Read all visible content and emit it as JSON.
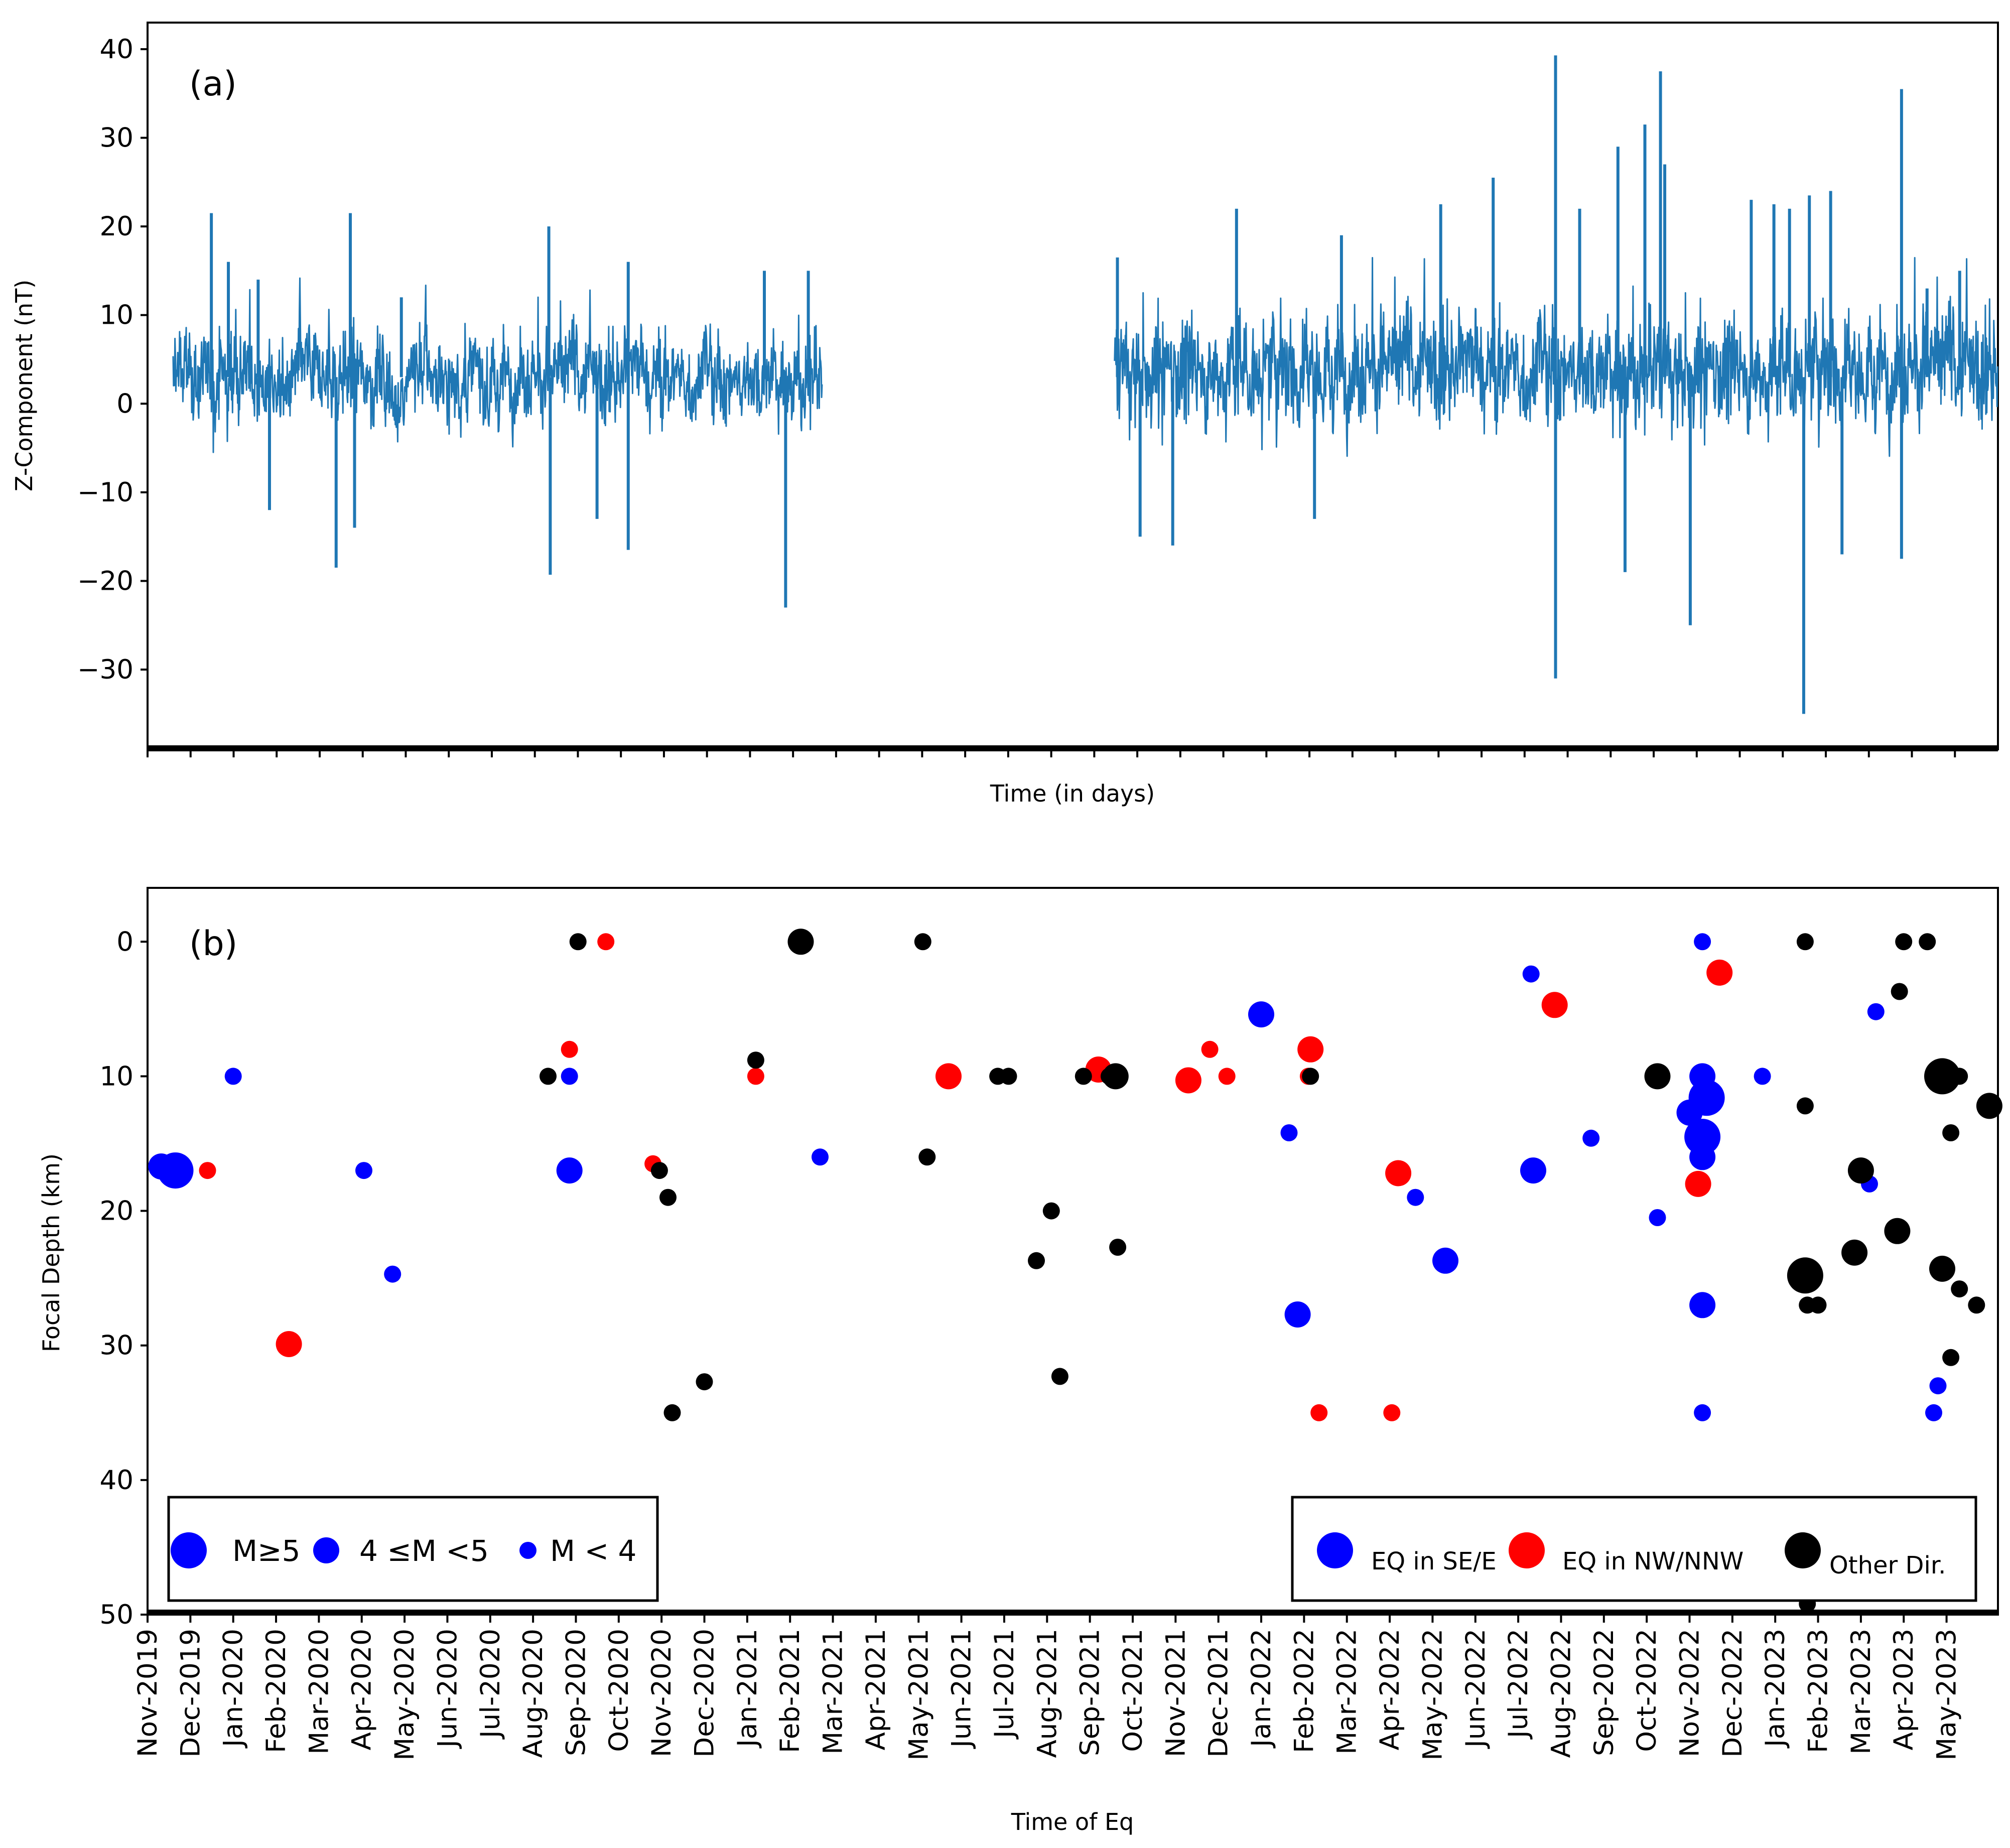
{
  "chart_data": [
    {
      "panel": "(a)",
      "type": "line",
      "title": "",
      "xlabel": "Time (in days)",
      "ylabel": "Z-Component (nT)",
      "ylim": [
        -39,
        43
      ],
      "yticks": [
        -30,
        -20,
        -10,
        0,
        10,
        20,
        30,
        40
      ],
      "ytick_labels": [
        "−30",
        "−20",
        "−10",
        "0",
        "10",
        "20",
        "30",
        "40"
      ],
      "xlim": [
        0,
        1305
      ],
      "color": "#1f77b4",
      "series": [
        {
          "name": "Z-Component",
          "segments": [
            {
              "start_day": 18,
              "end_day": 476,
              "baseline": 3,
              "amplitude": 6
            },
            {
              "start_day": 682,
              "end_day": 1305,
              "baseline": 4,
              "amplitude": 8
            }
          ],
          "spikes": [
            {
              "day": 45,
              "value": 21.5
            },
            {
              "day": 57,
              "value": 16
            },
            {
              "day": 78,
              "value": 14
            },
            {
              "day": 86,
              "value": -12
            },
            {
              "day": 133,
              "value": -18.5
            },
            {
              "day": 143,
              "value": 21.5
            },
            {
              "day": 146,
              "value": -14
            },
            {
              "day": 179,
              "value": 12
            },
            {
              "day": 283,
              "value": 20
            },
            {
              "day": 284,
              "value": -19.3
            },
            {
              "day": 317,
              "value": -13
            },
            {
              "day": 339,
              "value": 16
            },
            {
              "day": 339,
              "value": -16.5
            },
            {
              "day": 435,
              "value": 15
            },
            {
              "day": 450,
              "value": -23
            },
            {
              "day": 466,
              "value": 15
            },
            {
              "day": 684,
              "value": 16.5
            },
            {
              "day": 700,
              "value": -15
            },
            {
              "day": 723,
              "value": -16
            },
            {
              "day": 768,
              "value": 22
            },
            {
              "day": 823,
              "value": -13
            },
            {
              "day": 842,
              "value": 19
            },
            {
              "day": 912,
              "value": 22.5
            },
            {
              "day": 949,
              "value": 25.5
            },
            {
              "day": 993,
              "value": 39.3
            },
            {
              "day": 993,
              "value": -31
            },
            {
              "day": 1010,
              "value": 22
            },
            {
              "day": 1037,
              "value": 29
            },
            {
              "day": 1042,
              "value": -19
            },
            {
              "day": 1056,
              "value": 31.5
            },
            {
              "day": 1067,
              "value": 37.5
            },
            {
              "day": 1070,
              "value": 27
            },
            {
              "day": 1088,
              "value": -25
            },
            {
              "day": 1131,
              "value": 23
            },
            {
              "day": 1147,
              "value": 22.5
            },
            {
              "day": 1158,
              "value": 22
            },
            {
              "day": 1168,
              "value": -35
            },
            {
              "day": 1172,
              "value": 23.5
            },
            {
              "day": 1187,
              "value": 24
            },
            {
              "day": 1195,
              "value": -17
            },
            {
              "day": 1237,
              "value": 35.5
            },
            {
              "day": 1237,
              "value": -17.5
            },
            {
              "day": 1255,
              "value": 13
            },
            {
              "day": 1278,
              "value": 15
            }
          ]
        }
      ]
    },
    {
      "panel": "(b)",
      "type": "scatter",
      "title": "",
      "xlabel": "Time of Eq",
      "ylabel": "Focal Depth (km)",
      "ylim": [
        50,
        -4
      ],
      "yticks": [
        0,
        10,
        20,
        30,
        40,
        50
      ],
      "ytick_labels": [
        "0",
        "10",
        "20",
        "30",
        "40",
        "50"
      ],
      "x_units": "months since Nov-2019",
      "xlim": [
        0,
        43.2
      ],
      "categories": [
        "Nov-2019",
        "Dec-2019",
        "Jan-2020",
        "Feb-2020",
        "Mar-2020",
        "Apr-2020",
        "May-2020",
        "Jun-2020",
        "Jul-2020",
        "Aug-2020",
        "Sep-2020",
        "Oct-2020",
        "Nov-2020",
        "Dec-2020",
        "Jan-2021",
        "Feb-2021",
        "Mar-2021",
        "Apr-2021",
        "May-2021",
        "Jun-2021",
        "Jul-2021",
        "Aug-2021",
        "Sep-2021",
        "Oct-2021",
        "Nov-2021",
        "Dec-2021",
        "Jan-2022",
        "Feb-2022",
        "Mar-2022",
        "Apr-2022",
        "May-2022",
        "Jun-2022",
        "Jul-2022",
        "Aug-2022",
        "Sep-2022",
        "Oct-2022",
        "Nov-2022",
        "Dec-2022",
        "Jan-2023",
        "Feb-2023",
        "Mar-2023",
        "Apr-2023",
        "May-2023"
      ],
      "direction_colors": {
        "se": "#0000ff",
        "nw": "#ff0000",
        "other": "#000000"
      },
      "magnitude_classes": {
        "large": "M≥5",
        "medium": "4 ≤M <5",
        "small": "M < 4"
      },
      "series": [
        {
          "name": "EQ in SE/E",
          "dir": "se",
          "points": [
            {
              "x": 0.32,
              "y": 16.7,
              "m": "medium"
            },
            {
              "x": 0.65,
              "y": 17.0,
              "m": "large"
            },
            {
              "x": 2.0,
              "y": 10.0,
              "m": "small"
            },
            {
              "x": 5.05,
              "y": 17.0,
              "m": "small"
            },
            {
              "x": 5.72,
              "y": 24.7,
              "m": "small"
            },
            {
              "x": 9.85,
              "y": 10.0,
              "m": "small"
            },
            {
              "x": 9.85,
              "y": 17.0,
              "m": "medium"
            },
            {
              "x": 15.7,
              "y": 16.0,
              "m": "small"
            },
            {
              "x": 26.0,
              "y": 5.4,
              "m": "medium"
            },
            {
              "x": 26.65,
              "y": 14.2,
              "m": "small"
            },
            {
              "x": 26.85,
              "y": 27.7,
              "m": "medium"
            },
            {
              "x": 29.6,
              "y": 19.0,
              "m": "small"
            },
            {
              "x": 30.3,
              "y": 23.7,
              "m": "medium"
            },
            {
              "x": 32.3,
              "y": 2.4,
              "m": "small"
            },
            {
              "x": 32.35,
              "y": 17.0,
              "m": "medium"
            },
            {
              "x": 33.7,
              "y": 14.6,
              "m": "small"
            },
            {
              "x": 35.25,
              "y": 20.5,
              "m": "small"
            },
            {
              "x": 36.0,
              "y": 12.7,
              "m": "medium"
            },
            {
              "x": 36.3,
              "y": 0.0,
              "m": "small"
            },
            {
              "x": 36.3,
              "y": 10.0,
              "m": "medium"
            },
            {
              "x": 36.4,
              "y": 11.6,
              "m": "large"
            },
            {
              "x": 36.3,
              "y": 14.5,
              "m": "large"
            },
            {
              "x": 36.3,
              "y": 16.0,
              "m": "medium"
            },
            {
              "x": 36.3,
              "y": 27.0,
              "m": "medium"
            },
            {
              "x": 36.3,
              "y": 35.0,
              "m": "small"
            },
            {
              "x": 37.7,
              "y": 10.0,
              "m": "small"
            },
            {
              "x": 40.35,
              "y": 5.2,
              "m": "small"
            },
            {
              "x": 40.2,
              "y": 18.0,
              "m": "small"
            },
            {
              "x": 41.8,
              "y": 33.0,
              "m": "small"
            },
            {
              "x": 41.7,
              "y": 35.0,
              "m": "small"
            }
          ]
        },
        {
          "name": "EQ in NW/NNW",
          "dir": "nw",
          "points": [
            {
              "x": 1.4,
              "y": 17.0,
              "m": "small"
            },
            {
              "x": 3.3,
              "y": 29.9,
              "m": "medium"
            },
            {
              "x": 9.85,
              "y": 8.0,
              "m": "small"
            },
            {
              "x": 10.7,
              "y": 0.0,
              "m": "small"
            },
            {
              "x": 11.8,
              "y": 16.5,
              "m": "small"
            },
            {
              "x": 14.2,
              "y": 10.0,
              "m": "small"
            },
            {
              "x": 18.7,
              "y": 10.0,
              "m": "medium"
            },
            {
              "x": 22.2,
              "y": 9.5,
              "m": "medium"
            },
            {
              "x": 24.3,
              "y": 10.3,
              "m": "medium"
            },
            {
              "x": 24.8,
              "y": 8.0,
              "m": "small"
            },
            {
              "x": 25.2,
              "y": 10.0,
              "m": "small"
            },
            {
              "x": 27.15,
              "y": 8.0,
              "m": "medium"
            },
            {
              "x": 27.1,
              "y": 10.0,
              "m": "small"
            },
            {
              "x": 27.35,
              "y": 35.0,
              "m": "small"
            },
            {
              "x": 29.05,
              "y": 35.0,
              "m": "small"
            },
            {
              "x": 29.2,
              "y": 17.2,
              "m": "medium"
            },
            {
              "x": 32.85,
              "y": 4.7,
              "m": "medium"
            },
            {
              "x": 36.2,
              "y": 18.0,
              "m": "medium"
            },
            {
              "x": 36.7,
              "y": 2.3,
              "m": "medium"
            }
          ]
        },
        {
          "name": "Other Dir.",
          "dir": "other",
          "points": [
            {
              "x": 9.35,
              "y": 10.0,
              "m": "small"
            },
            {
              "x": 10.05,
              "y": 0.0,
              "m": "small"
            },
            {
              "x": 11.95,
              "y": 17.0,
              "m": "small"
            },
            {
              "x": 12.15,
              "y": 19.0,
              "m": "small"
            },
            {
              "x": 12.25,
              "y": 35.0,
              "m": "small"
            },
            {
              "x": 13.0,
              "y": 32.7,
              "m": "small"
            },
            {
              "x": 14.2,
              "y": 8.8,
              "m": "small"
            },
            {
              "x": 15.25,
              "y": 0.0,
              "m": "medium"
            },
            {
              "x": 18.1,
              "y": 0.0,
              "m": "small"
            },
            {
              "x": 18.2,
              "y": 16.0,
              "m": "small"
            },
            {
              "x": 19.85,
              "y": 10.0,
              "m": "small"
            },
            {
              "x": 20.1,
              "y": 10.0,
              "m": "small"
            },
            {
              "x": 20.75,
              "y": 23.7,
              "m": "small"
            },
            {
              "x": 21.1,
              "y": 20.0,
              "m": "small"
            },
            {
              "x": 21.3,
              "y": 32.3,
              "m": "small"
            },
            {
              "x": 21.85,
              "y": 10.0,
              "m": "small"
            },
            {
              "x": 22.45,
              "y": 10.0,
              "m": "small"
            },
            {
              "x": 22.6,
              "y": 10.0,
              "m": "medium"
            },
            {
              "x": 22.65,
              "y": 22.7,
              "m": "small"
            },
            {
              "x": 27.15,
              "y": 10.0,
              "m": "small"
            },
            {
              "x": 35.25,
              "y": 10.0,
              "m": "medium"
            },
            {
              "x": 38.7,
              "y": 0.0,
              "m": "small"
            },
            {
              "x": 38.7,
              "y": 12.2,
              "m": "small"
            },
            {
              "x": 38.7,
              "y": 24.8,
              "m": "large"
            },
            {
              "x": 38.75,
              "y": 27.0,
              "m": "small"
            },
            {
              "x": 39.0,
              "y": 27.0,
              "m": "small"
            },
            {
              "x": 38.75,
              "y": 49.2,
              "m": "small"
            },
            {
              "x": 39.85,
              "y": 23.1,
              "m": "medium"
            },
            {
              "x": 40.0,
              "y": 17.0,
              "m": "medium"
            },
            {
              "x": 40.9,
              "y": 3.7,
              "m": "small"
            },
            {
              "x": 41.0,
              "y": 0.0,
              "m": "small"
            },
            {
              "x": 40.85,
              "y": 21.5,
              "m": "medium"
            },
            {
              "x": 41.55,
              "y": 0.0,
              "m": "small"
            },
            {
              "x": 41.9,
              "y": 10.0,
              "m": "large"
            },
            {
              "x": 42.3,
              "y": 10.0,
              "m": "small"
            },
            {
              "x": 42.1,
              "y": 14.2,
              "m": "small"
            },
            {
              "x": 41.9,
              "y": 24.3,
              "m": "medium"
            },
            {
              "x": 42.3,
              "y": 25.8,
              "m": "small"
            },
            {
              "x": 42.1,
              "y": 30.9,
              "m": "small"
            },
            {
              "x": 42.7,
              "y": 27.0,
              "m": "small"
            },
            {
              "x": 43.0,
              "y": 12.2,
              "m": "medium"
            }
          ]
        }
      ]
    }
  ]
}
